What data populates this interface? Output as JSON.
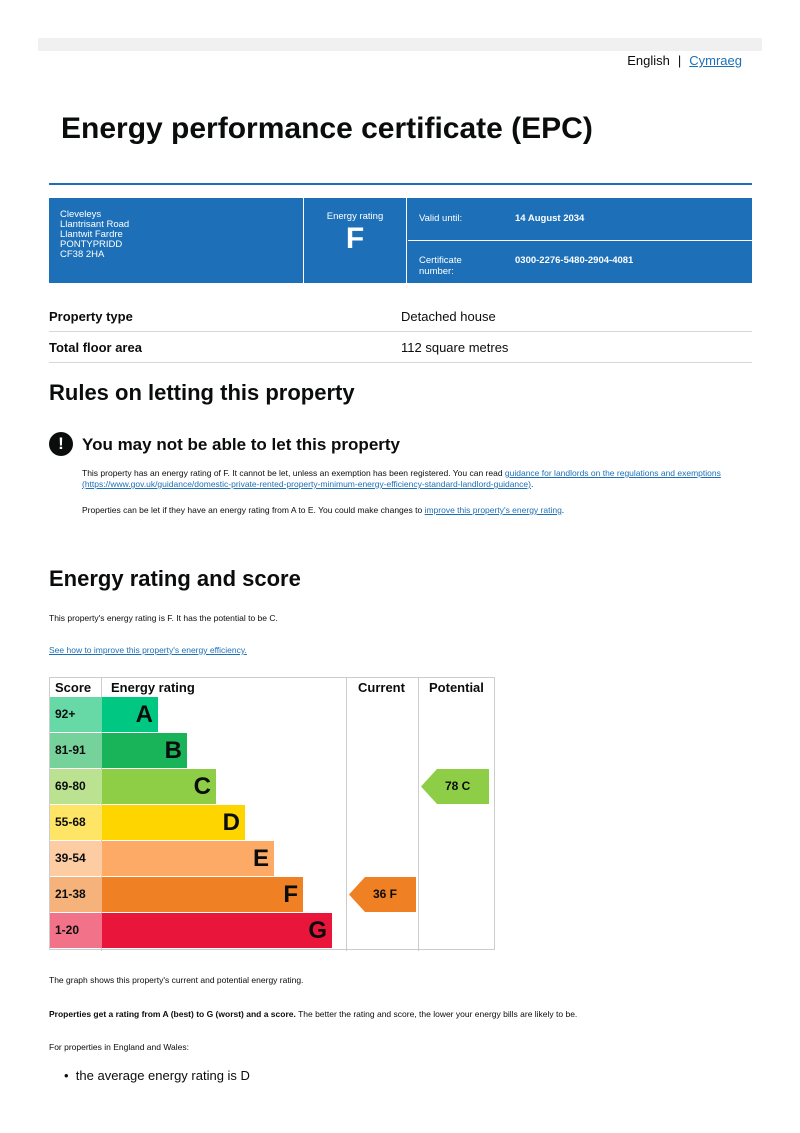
{
  "lang": {
    "english": "English",
    "separator": "|",
    "welsh": "Cymraeg"
  },
  "title": "Energy performance certificate (EPC)",
  "summary": {
    "address": [
      "Cleveleys",
      "Llantrisant Road",
      "Llantwit Fardre",
      "PONTYPRIDD",
      "CF38 2HA"
    ],
    "rating_label": "Energy rating",
    "rating": "F",
    "valid_label": "Valid until:",
    "valid_value": "14 August 2034",
    "cert_label": "Certificate number:",
    "cert_value": "0300-2276-5480-2904-4081"
  },
  "property": [
    {
      "k": "Property type",
      "v": "Detached house"
    },
    {
      "k": "Total floor area",
      "v": "112 square metres"
    }
  ],
  "letting": {
    "heading": "Rules on letting this property",
    "warning": "You may not be able to let this property",
    "p1": "This property has an energy rating of F. It cannot be let, unless an exemption has been registered. You can read ",
    "p1_link": "guidance for landlords on the regulations and exemptions (https://www.gov.uk/guidance/domestic-private-rented-property-minimum-energy-efficiency-standard-landlord-guidance)",
    "p1_end": ".",
    "p2": "Properties can be let if they have an energy rating from A to E. You could make changes to ",
    "p2_link": "improve this property's energy rating",
    "p2_end": "."
  },
  "score": {
    "heading": "Energy rating and score",
    "text": "This property's energy rating is F. It has the potential to be C.",
    "link": "See how to improve this property's energy efficiency.",
    "after1": "The graph shows this property's current and potential energy rating.",
    "after2_bold": "Properties get a rating from A (best) to G (worst) and a score.",
    "after2": " The better the rating and score, the lower your energy bills are likely to be.",
    "after3": "For properties in England and Wales:",
    "bullet": "the average energy rating is D"
  },
  "chart_data": {
    "type": "table",
    "headers": [
      "Score",
      "Energy rating",
      "Current",
      "Potential"
    ],
    "bands": [
      {
        "score": "92+",
        "letter": "A",
        "color": "#00c781",
        "light": "#66d9a6"
      },
      {
        "score": "81-91",
        "letter": "B",
        "color": "#19b459",
        "light": "#75d29b"
      },
      {
        "score": "69-80",
        "letter": "C",
        "color": "#8dce46",
        "light": "#bbe290"
      },
      {
        "score": "55-68",
        "letter": "D",
        "color": "#ffd500",
        "light": "#ffe566"
      },
      {
        "score": "39-54",
        "letter": "E",
        "color": "#fcaa65",
        "light": "#fdcca3"
      },
      {
        "score": "21-38",
        "letter": "F",
        "color": "#ef8023",
        "light": "#f5b37b"
      },
      {
        "score": "1-20",
        "letter": "G",
        "color": "#e9153b",
        "light": "#f27389"
      }
    ],
    "current": {
      "score": 36,
      "letter": "F",
      "label": "36  F"
    },
    "potential": {
      "score": 78,
      "letter": "C",
      "label": "78  C"
    }
  }
}
